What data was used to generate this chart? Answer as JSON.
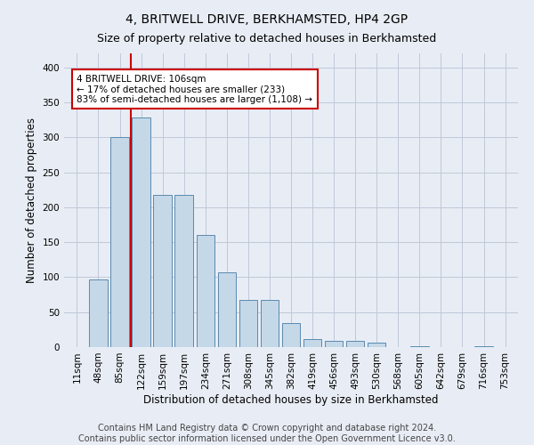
{
  "title": "4, BRITWELL DRIVE, BERKHAMSTED, HP4 2GP",
  "subtitle": "Size of property relative to detached houses in Berkhamsted",
  "xlabel": "Distribution of detached houses by size in Berkhamsted",
  "ylabel": "Number of detached properties",
  "footnote1": "Contains HM Land Registry data © Crown copyright and database right 2024.",
  "footnote2": "Contains public sector information licensed under the Open Government Licence v3.0.",
  "categories": [
    "11sqm",
    "48sqm",
    "85sqm",
    "122sqm",
    "159sqm",
    "197sqm",
    "234sqm",
    "271sqm",
    "308sqm",
    "345sqm",
    "382sqm",
    "419sqm",
    "456sqm",
    "493sqm",
    "530sqm",
    "568sqm",
    "605sqm",
    "642sqm",
    "679sqm",
    "716sqm",
    "753sqm"
  ],
  "bar_heights": [
    0,
    97,
    300,
    328,
    218,
    218,
    160,
    107,
    67,
    67,
    34,
    12,
    9,
    9,
    6,
    0,
    1,
    0,
    0,
    1,
    0
  ],
  "bar_color": "#c5d8e8",
  "bar_edge_color": "#5a8ab0",
  "annotation_box_text": "4 BRITWELL DRIVE: 106sqm\n← 17% of detached houses are smaller (233)\n83% of semi-detached houses are larger (1,108) →",
  "annotation_box_color": "#ffffff",
  "annotation_box_edge_color": "#cc0000",
  "vline_x": 2.5,
  "vline_color": "#cc0000",
  "ylim": [
    0,
    420
  ],
  "yticks": [
    0,
    50,
    100,
    150,
    200,
    250,
    300,
    350,
    400
  ],
  "grid_color": "#c0c8d8",
  "bg_color": "#e8edf5",
  "title_fontsize": 10,
  "subtitle_fontsize": 9,
  "axis_label_fontsize": 8.5,
  "tick_fontsize": 7.5,
  "footnote_fontsize": 7
}
